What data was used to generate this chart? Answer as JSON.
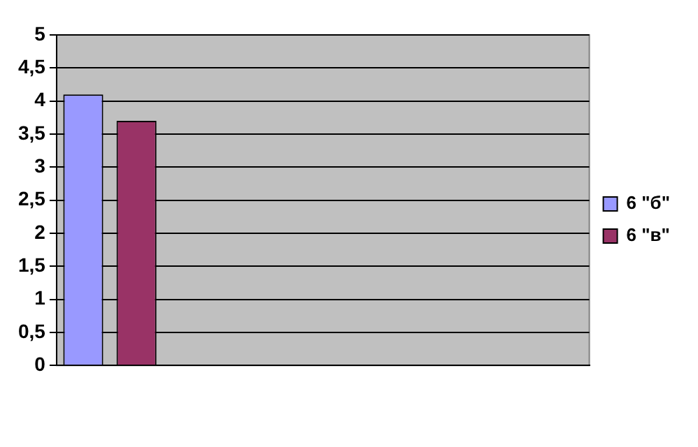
{
  "chart_data": {
    "type": "bar",
    "categories": [
      null,
      null,
      null,
      null,
      null
    ],
    "series": [
      {
        "name": "6 \"б\"",
        "color": "#9999ff",
        "values": [
          4.1,
          null,
          null,
          null,
          null
        ]
      },
      {
        "name": "6 \"в\"",
        "color": "#993366",
        "values": [
          3.7,
          null,
          null,
          null,
          null
        ]
      }
    ],
    "ylim": [
      0,
      5
    ],
    "yticks": [
      0,
      {
        "value": 0.5,
        "label": "0,5"
      },
      1,
      {
        "value": 1.5,
        "label": "1,5"
      },
      2,
      {
        "value": 2.5,
        "label": "2,5"
      },
      3,
      {
        "value": 3.5,
        "label": "3,5"
      },
      4,
      {
        "value": 4.5,
        "label": "4,5"
      },
      5
    ],
    "grid": "y",
    "legend": "right"
  }
}
